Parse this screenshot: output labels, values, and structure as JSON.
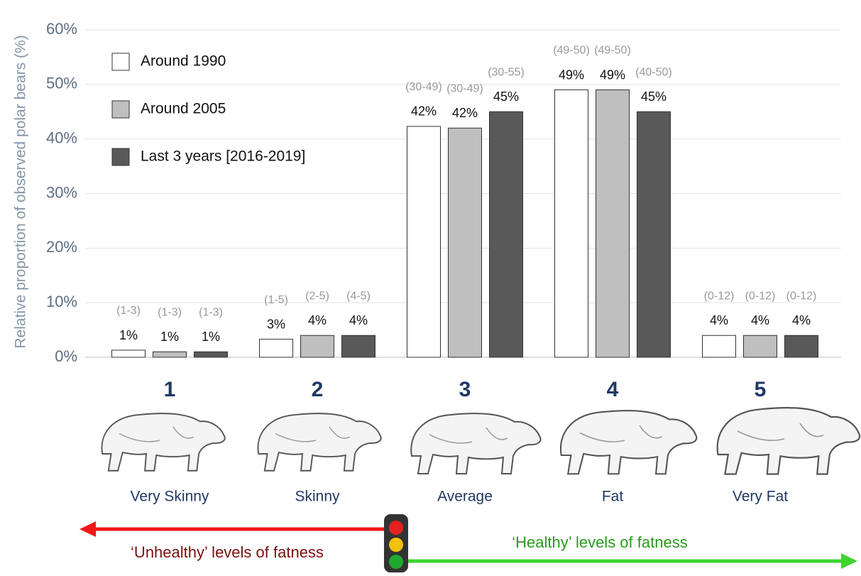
{
  "chart_data": {
    "type": "bar",
    "y_label": "Relative proportion of observed polar bears (%)",
    "categories": [
      "1",
      "2",
      "3",
      "4",
      "5"
    ],
    "descriptions": [
      "Very Skinny",
      "Skinny",
      "Average",
      "Fat",
      "Very Fat"
    ],
    "series": [
      {
        "name": "Around 1990",
        "color": "#ffffff",
        "values": [
          1.3,
          3.3,
          42.3,
          49,
          4
        ],
        "value_labels": [
          "1%",
          "3%",
          "42%",
          "49%",
          "4%"
        ],
        "ranges": [
          "(1-3)",
          "(1-5)",
          "(30-49)",
          "(49-50)",
          "(0-12)"
        ]
      },
      {
        "name": "Around 2005",
        "color": "#bfbfbf",
        "values": [
          1,
          4,
          42,
          49,
          4
        ],
        "value_labels": [
          "1%",
          "4%",
          "42%",
          "49%",
          "4%"
        ],
        "ranges": [
          "(1-3)",
          "(2-5)",
          "(30-49)",
          "(49-50)",
          "(0-12)"
        ]
      },
      {
        "name": "Last 3 years [2016-2019]",
        "color": "#595959",
        "values": [
          1,
          4,
          45,
          45,
          4
        ],
        "value_labels": [
          "1%",
          "4%",
          "45%",
          "45%",
          "4%"
        ],
        "ranges": [
          "(1-3)",
          "(4-5)",
          "(30-55)",
          "(40-50)",
          "(0-12)"
        ]
      }
    ],
    "ylim": [
      0,
      60
    ],
    "yticks": [
      {
        "value": 0,
        "label": "0%"
      },
      {
        "value": 10,
        "label": "10%"
      },
      {
        "value": 20,
        "label": "20%"
      },
      {
        "value": 30,
        "label": "30%"
      },
      {
        "value": 40,
        "label": "40%"
      },
      {
        "value": 50,
        "label": "50%"
      },
      {
        "value": 60,
        "label": "60%"
      }
    ],
    "grid": true,
    "legend": "upper left",
    "annotations": {
      "unhealthy": "‘Unhealthy’ levels of fatness",
      "healthy": "‘Healthy’ levels of fatness"
    }
  }
}
